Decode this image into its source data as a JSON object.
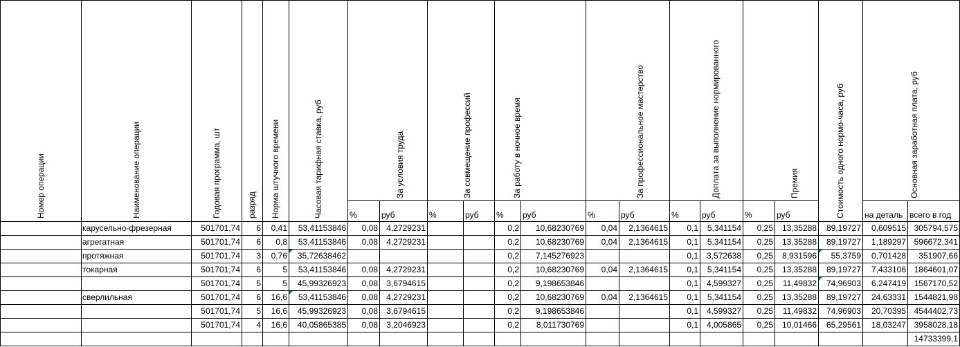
{
  "headers": {
    "op_number": "Номер операции",
    "op_name": "Наименование операции",
    "annual_program": "Годовая программа, шт",
    "grade": "разряд",
    "piece_time_norm": "Норма штучного времени",
    "hourly_rate": "Часовая тарифная ставка, руб",
    "conditions": "За условия труда",
    "combining": "За совмещение профессий",
    "night": "За работу в ночное время",
    "skill": "За профессиональное мастерство",
    "norm_doplata": "Доплата за выполнение нормированного",
    "bonus": "Премия",
    "norm_hour_cost": "Стоимость одного нормо-часа, руб",
    "base_salary": "Основная заработная плата, руб",
    "pct": "%",
    "rub": "руб",
    "per_part": "на деталь",
    "per_year": "всего в год"
  },
  "rows": [
    {
      "name": "карусельно-фрезерная",
      "prog": "501701,74",
      "grade": "6",
      "norm": "0,41",
      "rate": "53,41153846",
      "c_pct": "0,08",
      "c_rub": "4,2729231",
      "k_pct": "",
      "k_rub": "",
      "n_pct": "0,2",
      "n_rub": "10,68230769",
      "s_pct": "0,04",
      "s_rub": "2,1364615",
      "d_pct": "0,1",
      "d_rub": "5,341154",
      "b_pct": "0,25",
      "b_rub": "13,35288",
      "cost": "89,19727",
      "part": "0,609515",
      "year": "305794,575"
    },
    {
      "name": "агрегатная",
      "prog": "501701,74",
      "grade": "6",
      "norm": "0,8",
      "rate": "53,41153846",
      "c_pct": "0,08",
      "c_rub": "4,2729231",
      "k_pct": "",
      "k_rub": "",
      "n_pct": "0,2",
      "n_rub": "10,68230769",
      "s_pct": "0,04",
      "s_rub": "2,1364615",
      "d_pct": "0,1",
      "d_rub": "5,341154",
      "b_pct": "0,25",
      "b_rub": "13,35288",
      "cost": "89,19727",
      "part": "1,189297",
      "year": "596672,341"
    },
    {
      "name": "протяжная",
      "prog": "501701,74",
      "grade": "3",
      "norm": "0,76",
      "rate": "35,72638462",
      "c_pct": "",
      "c_rub": "",
      "k_pct": "",
      "k_rub": "",
      "n_pct": "0,2",
      "n_rub": "7,145276923",
      "s_pct": "",
      "s_rub": "",
      "d_pct": "0,1",
      "d_rub": "3,572638",
      "b_pct": "0,25",
      "b_rub": "8,931596",
      "cost": "55,3759",
      "part": "0,701428",
      "year": "351907,66"
    },
    {
      "name": "токарная",
      "prog": "501701,74",
      "grade": "6",
      "norm": "5",
      "rate": "53,41153846",
      "c_pct": "0,08",
      "c_rub": "4,2729231",
      "k_pct": "",
      "k_rub": "",
      "n_pct": "0,2",
      "n_rub": "10,68230769",
      "s_pct": "0,04",
      "s_rub": "2,1364615",
      "d_pct": "0,1",
      "d_rub": "5,341154",
      "b_pct": "0,25",
      "b_rub": "13,35288",
      "cost": "89,19727",
      "part": "7,433106",
      "year": "1864601,07"
    },
    {
      "name": "",
      "prog": "501701,74",
      "grade": "5",
      "norm": "5",
      "rate": "45,99326923",
      "c_pct": "0,08",
      "c_rub": "3,6794615",
      "k_pct": "",
      "k_rub": "",
      "n_pct": "0,2",
      "n_rub": "9,198653846",
      "s_pct": "",
      "s_rub": "",
      "d_pct": "0,1",
      "d_rub": "4,599327",
      "b_pct": "0,25",
      "b_rub": "11,49832",
      "cost": "74,96903",
      "part": "6,247419",
      "year": "1567170,52"
    },
    {
      "name": "сверлильная",
      "prog": "501701,74",
      "grade": "6",
      "norm": "16,6",
      "rate": "53,41153846",
      "c_pct": "0,08",
      "c_rub": "4,2729231",
      "k_pct": "",
      "k_rub": "",
      "n_pct": "0,2",
      "n_rub": "10,68230769",
      "s_pct": "0,04",
      "s_rub": "2,1364615",
      "d_pct": "0,1",
      "d_rub": "5,341154",
      "b_pct": "0,25",
      "b_rub": "13,35288",
      "cost": "89,19727",
      "part": "24,63331",
      "year": "1544821,98"
    },
    {
      "name": "",
      "prog": "501701,74",
      "grade": "5",
      "norm": "16,6",
      "rate": "45,99326923",
      "c_pct": "0,08",
      "c_rub": "3,6794615",
      "k_pct": "",
      "k_rub": "",
      "n_pct": "0,2",
      "n_rub": "9,198653846",
      "s_pct": "",
      "s_rub": "",
      "d_pct": "0,1",
      "d_rub": "4,599327",
      "b_pct": "0,25",
      "b_rub": "11,49832",
      "cost": "74,96903",
      "part": "20,70395",
      "year": "4544402,73"
    },
    {
      "name": "",
      "prog": "501701,74",
      "grade": "4",
      "norm": "16,6",
      "rate": "40,05865385",
      "c_pct": "0,08",
      "c_rub": "3,2046923",
      "k_pct": "",
      "k_rub": "",
      "n_pct": "0,2",
      "n_rub": "8,011730769",
      "s_pct": "",
      "s_rub": "",
      "d_pct": "0,1",
      "d_rub": "4,005865",
      "b_pct": "0,25",
      "b_rub": "10,01466",
      "cost": "65,29561",
      "part": "18,03247",
      "year": "3958028,18"
    }
  ],
  "total": {
    "year": "14733399,1"
  }
}
